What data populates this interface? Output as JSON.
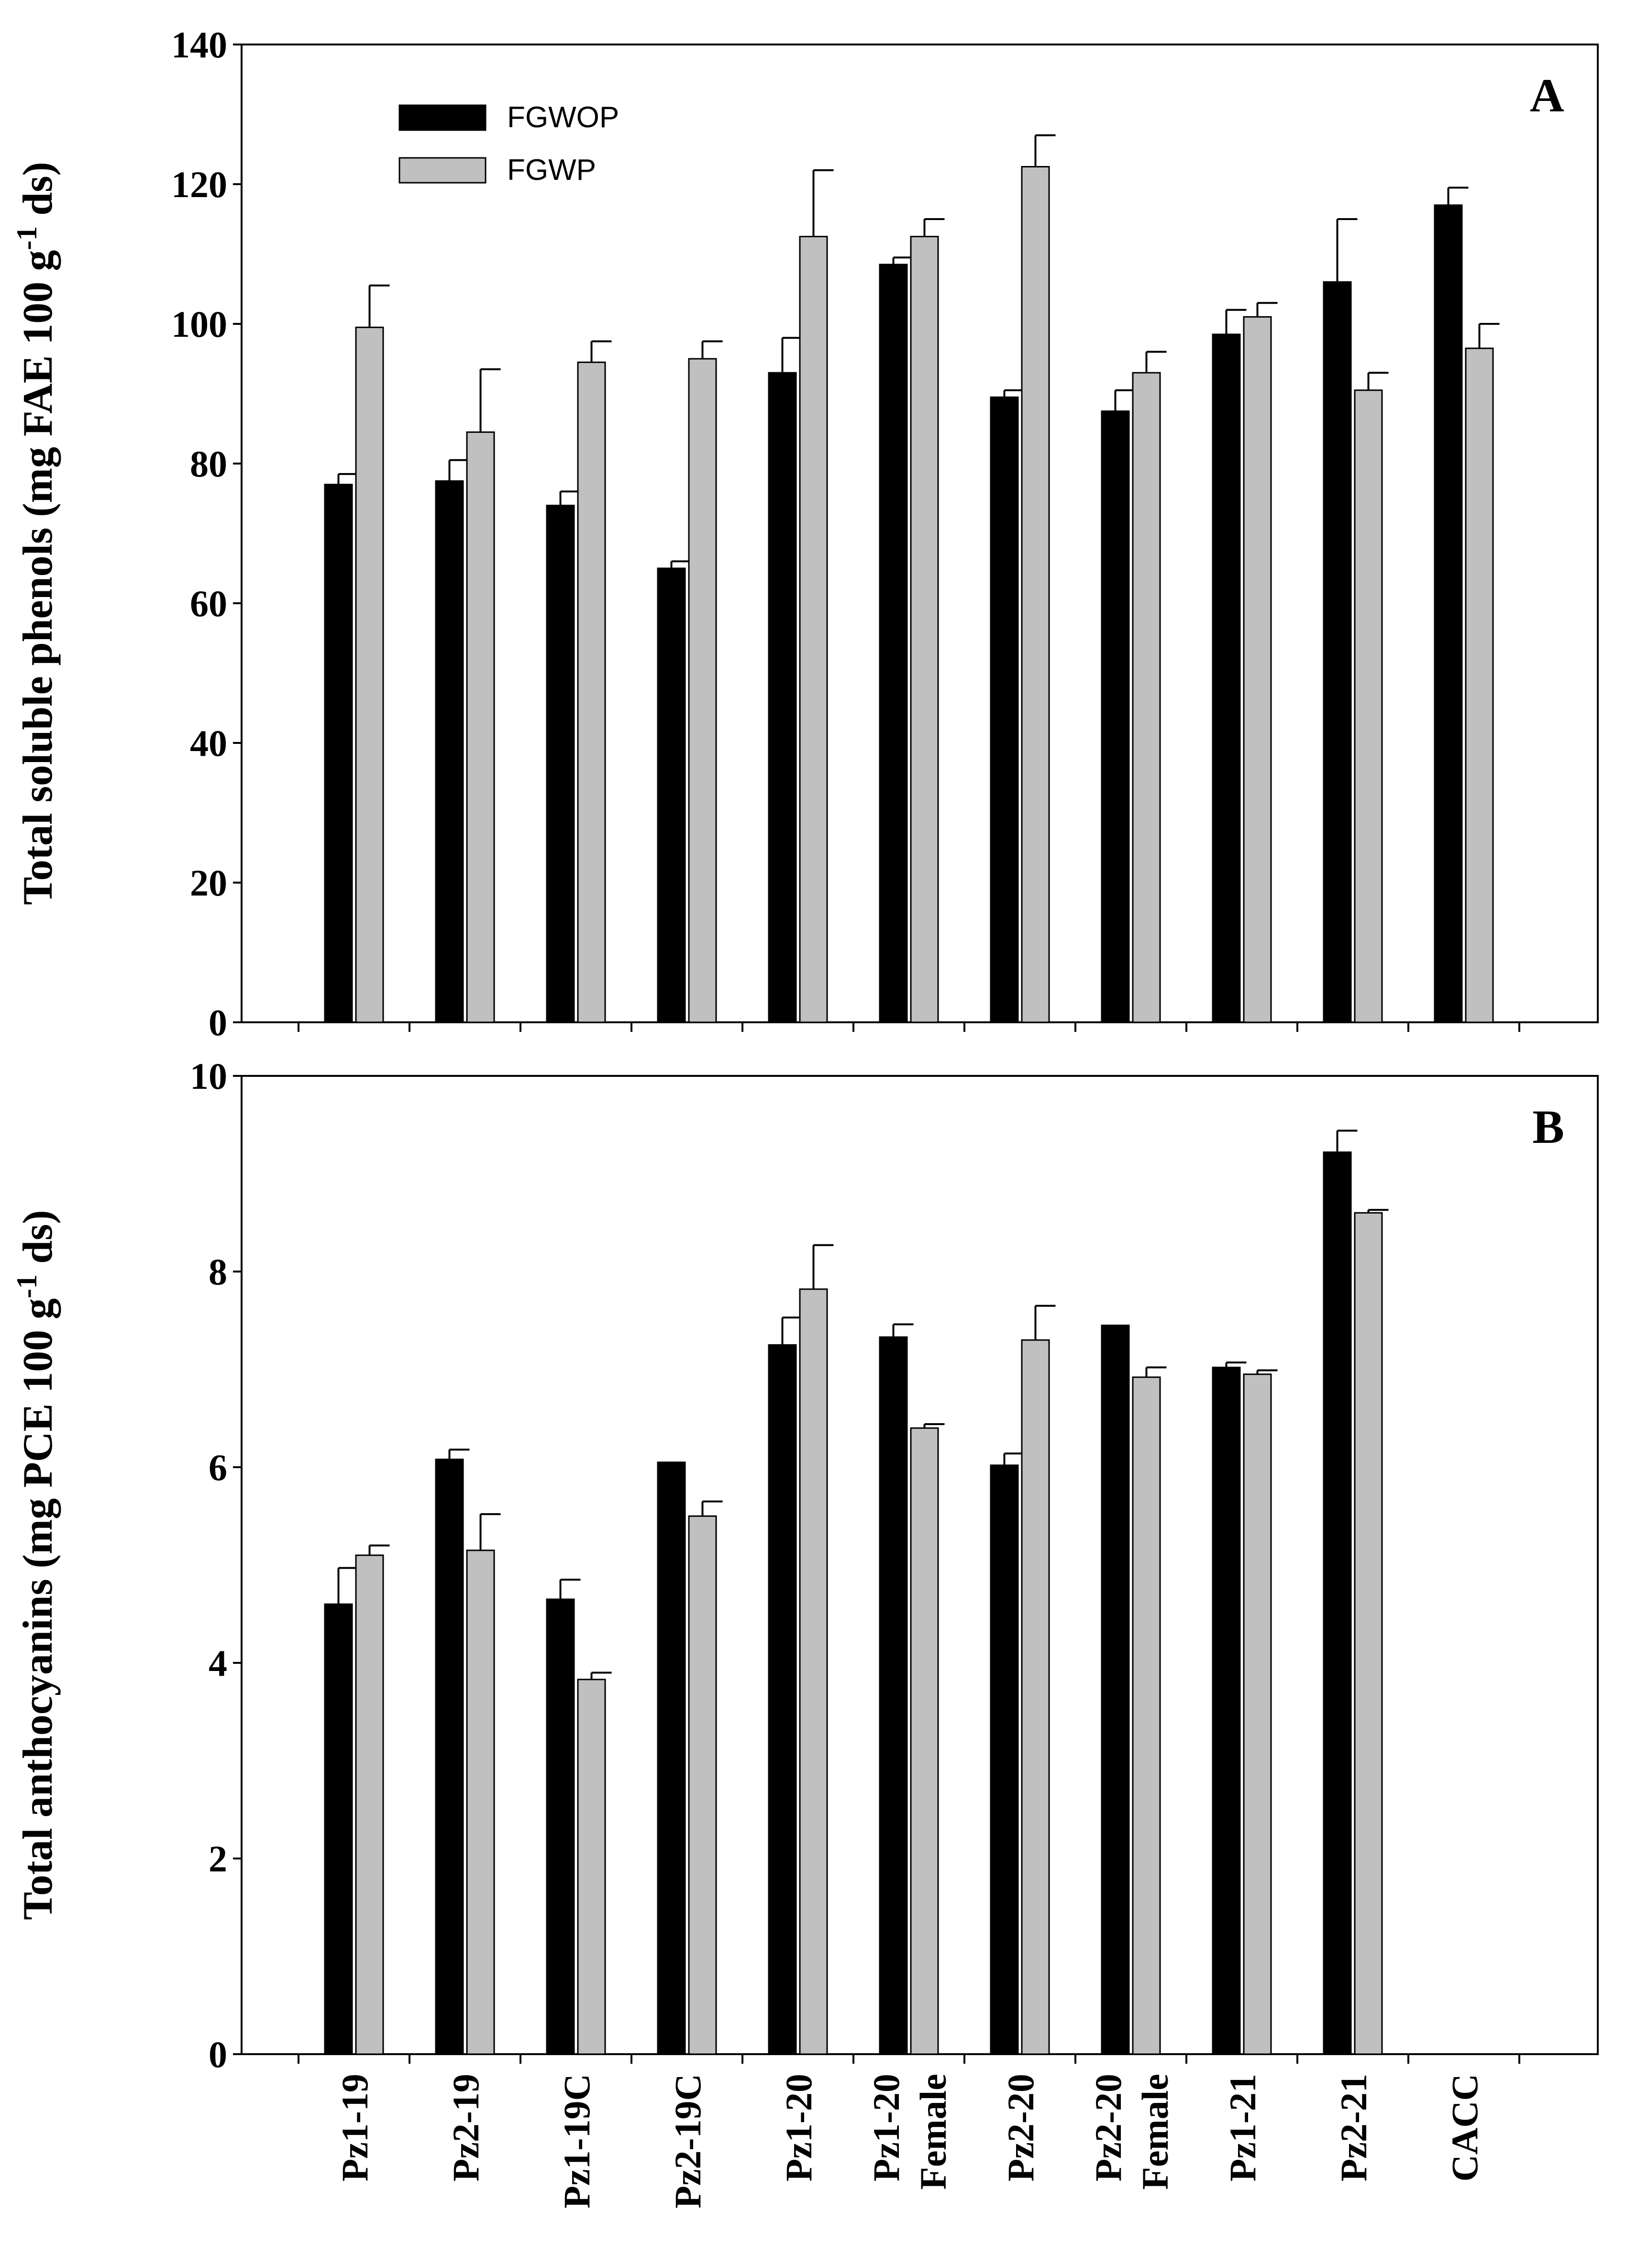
{
  "chart_data": [
    {
      "type": "bar",
      "panel": "A",
      "ylabel": "Total soluble phenols (mg FAE 100 g",
      "ylabel_sup": "-1",
      "ylabel_suffix": " ds)",
      "ylim": [
        0,
        140
      ],
      "yticks": [
        0,
        20,
        40,
        60,
        80,
        100,
        120,
        140
      ],
      "categories": [
        "Pz1-19",
        "Pz2-19",
        "Pz1-19C",
        "Pz2-19C",
        "Pz1-20",
        "Pz1-20 Female",
        "Pz2-20",
        "Pz2-20 Female",
        "Pz1-21",
        "Pz2-21",
        "CACC"
      ],
      "series": [
        {
          "name": "FGWOP",
          "color": "#000000",
          "values": [
            77,
            77.5,
            74,
            65,
            93,
            108.5,
            89.5,
            87.5,
            98.5,
            106,
            117
          ],
          "errors": [
            1.5,
            3,
            2,
            1,
            5,
            1,
            1,
            3,
            3.5,
            9,
            2.5
          ]
        },
        {
          "name": "FGWP",
          "color": "#c0c0c0",
          "values": [
            99.5,
            84.5,
            94.5,
            95,
            112.5,
            112.5,
            122.5,
            93,
            101,
            90.5,
            96.5
          ],
          "errors": [
            6,
            9,
            3,
            2.5,
            9.5,
            2.5,
            4.5,
            3,
            2,
            2.5,
            3.5
          ]
        }
      ],
      "legend": {
        "position": "top-left",
        "entries": [
          "FGWOP",
          "FGWP"
        ]
      }
    },
    {
      "type": "bar",
      "panel": "B",
      "ylabel": "Total anthocyanins (mg PCE 100 g",
      "ylabel_sup": "-1",
      "ylabel_suffix": " ds)",
      "ylim": [
        0,
        10
      ],
      "yticks": [
        0,
        2,
        4,
        6,
        8,
        10
      ],
      "categories": [
        "Pz1-19",
        "Pz2-19",
        "Pz1-19C",
        "Pz2-19C",
        "Pz1-20",
        "Pz1-20 Female",
        "Pz2-20",
        "Pz2-20 Female",
        "Pz1-21",
        "Pz2-21",
        "CACC"
      ],
      "x_tick_labels": [
        [
          "Pz1-19"
        ],
        [
          "Pz2-19"
        ],
        [
          "Pz1-19C"
        ],
        [
          "Pz2-19C"
        ],
        [
          "Pz1-20"
        ],
        [
          "Pz1-20",
          "Female"
        ],
        [
          "Pz2-20"
        ],
        [
          "Pz2-20",
          "Female"
        ],
        [
          "Pz1-21"
        ],
        [
          "Pz2-21"
        ],
        [
          "CACC"
        ]
      ],
      "series": [
        {
          "name": "FGWOP",
          "color": "#000000",
          "values": [
            4.6,
            6.08,
            4.65,
            6.05,
            7.25,
            7.33,
            6.02,
            7.45,
            7.02,
            9.22,
            null
          ],
          "errors": [
            0.37,
            0.1,
            0.2,
            0,
            0.28,
            0.13,
            0.12,
            0,
            0.05,
            0.22,
            null
          ]
        },
        {
          "name": "FGWP",
          "color": "#c0c0c0",
          "values": [
            5.1,
            5.15,
            3.83,
            5.5,
            7.82,
            6.4,
            7.3,
            6.92,
            6.95,
            8.6,
            null
          ],
          "errors": [
            0.1,
            0.37,
            0.07,
            0.15,
            0.45,
            0.04,
            0.35,
            0.1,
            0.04,
            0.03,
            null
          ]
        }
      ]
    }
  ]
}
